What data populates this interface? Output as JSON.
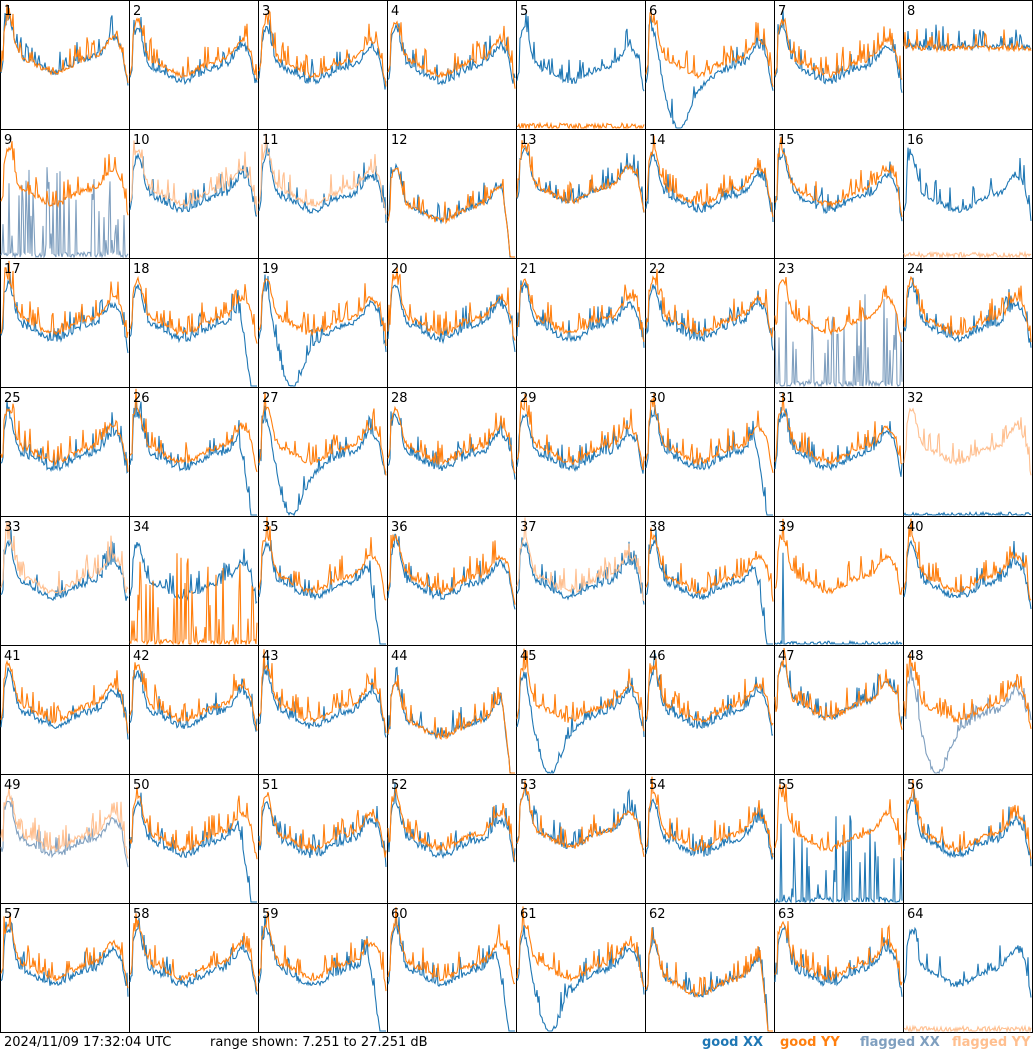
{
  "timestamp": "2024/11/09 17:32:04 UTC",
  "range_text": "range shown: 7.251 to 27.251 dB",
  "colors": {
    "good_xx": "#1f77b4",
    "good_yy": "#ff7f0e",
    "flagged_xx": "#7f9fbf",
    "flagged_yy": "#ffbf8f"
  },
  "legend": [
    {
      "label": "good XX",
      "color": "#1f77b4"
    },
    {
      "label": "good YY",
      "color": "#ff7f0e"
    },
    {
      "label": "flagged XX",
      "color": "#7f9fbf"
    },
    {
      "label": "flagged YY",
      "color": "#ffbf8f"
    }
  ],
  "chart_data": {
    "type": "line",
    "grid": "8x8 small multiples",
    "ylim": [
      7.251,
      27.251
    ],
    "panels": [
      {
        "label": "1",
        "xx": "good",
        "yy": "good",
        "shape": "drop"
      },
      {
        "label": "2",
        "xx": "good",
        "yy": "good",
        "shape": "normal"
      },
      {
        "label": "3",
        "xx": "good",
        "yy": "good",
        "shape": "normal"
      },
      {
        "label": "4",
        "xx": "good",
        "yy": "good",
        "shape": "normal"
      },
      {
        "label": "5",
        "xx": "good",
        "yy": "good",
        "shape": "yy-low"
      },
      {
        "label": "6",
        "xx": "good",
        "yy": "good",
        "shape": "xx-dip"
      },
      {
        "label": "7",
        "xx": "good",
        "yy": "good",
        "shape": "normal"
      },
      {
        "label": "8",
        "xx": "good",
        "yy": "good",
        "shape": "flat"
      },
      {
        "label": "9",
        "xx": "flagged",
        "yy": "good",
        "shape": "xx-spiky-low"
      },
      {
        "label": "10",
        "xx": "good",
        "yy": "flagged",
        "shape": "normal"
      },
      {
        "label": "11",
        "xx": "good",
        "yy": "flagged",
        "shape": "normal"
      },
      {
        "label": "12",
        "xx": "good",
        "yy": "good",
        "shape": "drop"
      },
      {
        "label": "13",
        "xx": "good",
        "yy": "good",
        "shape": "drop"
      },
      {
        "label": "14",
        "xx": "good",
        "yy": "good",
        "shape": "normal"
      },
      {
        "label": "15",
        "xx": "good",
        "yy": "good",
        "shape": "normal"
      },
      {
        "label": "16",
        "xx": "good",
        "yy": "flagged",
        "shape": "yy-low"
      },
      {
        "label": "17",
        "xx": "good",
        "yy": "good",
        "shape": "normal"
      },
      {
        "label": "18",
        "xx": "good",
        "yy": "good",
        "shape": "xx-drop"
      },
      {
        "label": "19",
        "xx": "good",
        "yy": "good",
        "shape": "xx-dip"
      },
      {
        "label": "20",
        "xx": "good",
        "yy": "good",
        "shape": "normal"
      },
      {
        "label": "21",
        "xx": "good",
        "yy": "good",
        "shape": "normal"
      },
      {
        "label": "22",
        "xx": "good",
        "yy": "good",
        "shape": "normal"
      },
      {
        "label": "23",
        "xx": "flagged",
        "yy": "good",
        "shape": "xx-spiky-low"
      },
      {
        "label": "24",
        "xx": "good",
        "yy": "good",
        "shape": "normal"
      },
      {
        "label": "25",
        "xx": "good",
        "yy": "good",
        "shape": "normal"
      },
      {
        "label": "26",
        "xx": "good",
        "yy": "good",
        "shape": "xx-drop"
      },
      {
        "label": "27",
        "xx": "good",
        "yy": "good",
        "shape": "xx-dip"
      },
      {
        "label": "28",
        "xx": "good",
        "yy": "good",
        "shape": "normal"
      },
      {
        "label": "29",
        "xx": "good",
        "yy": "good",
        "shape": "normal"
      },
      {
        "label": "30",
        "xx": "good",
        "yy": "good",
        "shape": "xx-drop"
      },
      {
        "label": "31",
        "xx": "good",
        "yy": "good",
        "shape": "normal"
      },
      {
        "label": "32",
        "xx": "good",
        "yy": "flagged",
        "shape": "yy-only"
      },
      {
        "label": "33",
        "xx": "good",
        "yy": "flagged",
        "shape": "normal"
      },
      {
        "label": "34",
        "xx": "good",
        "yy": "good",
        "shape": "yy-spiky-low"
      },
      {
        "label": "35",
        "xx": "good",
        "yy": "good",
        "shape": "xx-drop"
      },
      {
        "label": "36",
        "xx": "good",
        "yy": "good",
        "shape": "normal"
      },
      {
        "label": "37",
        "xx": "good",
        "yy": "flagged",
        "shape": "normal"
      },
      {
        "label": "38",
        "xx": "good",
        "yy": "good",
        "shape": "xx-drop"
      },
      {
        "label": "39",
        "xx": "good",
        "yy": "good",
        "shape": "xx-spike"
      },
      {
        "label": "40",
        "xx": "good",
        "yy": "good",
        "shape": "normal"
      },
      {
        "label": "41",
        "xx": "good",
        "yy": "good",
        "shape": "normal"
      },
      {
        "label": "42",
        "xx": "good",
        "yy": "good",
        "shape": "normal"
      },
      {
        "label": "43",
        "xx": "good",
        "yy": "good",
        "shape": "normal"
      },
      {
        "label": "44",
        "xx": "good",
        "yy": "good",
        "shape": "drop"
      },
      {
        "label": "45",
        "xx": "good",
        "yy": "good",
        "shape": "xx-dip"
      },
      {
        "label": "46",
        "xx": "good",
        "yy": "good",
        "shape": "normal"
      },
      {
        "label": "47",
        "xx": "good",
        "yy": "good",
        "shape": "drop"
      },
      {
        "label": "48",
        "xx": "flagged",
        "yy": "good",
        "shape": "xx-dip"
      },
      {
        "label": "49",
        "xx": "flagged",
        "yy": "flagged",
        "shape": "normal"
      },
      {
        "label": "50",
        "xx": "good",
        "yy": "good",
        "shape": "xx-drop"
      },
      {
        "label": "51",
        "xx": "good",
        "yy": "good",
        "shape": "normal"
      },
      {
        "label": "52",
        "xx": "good",
        "yy": "good",
        "shape": "normal"
      },
      {
        "label": "53",
        "xx": "good",
        "yy": "good",
        "shape": "drop"
      },
      {
        "label": "54",
        "xx": "good",
        "yy": "good",
        "shape": "normal"
      },
      {
        "label": "55",
        "xx": "good",
        "yy": "good",
        "shape": "xx-spiky-low"
      },
      {
        "label": "56",
        "xx": "good",
        "yy": "good",
        "shape": "normal"
      },
      {
        "label": "57",
        "xx": "good",
        "yy": "good",
        "shape": "normal"
      },
      {
        "label": "58",
        "xx": "good",
        "yy": "good",
        "shape": "normal"
      },
      {
        "label": "59",
        "xx": "good",
        "yy": "good",
        "shape": "xx-drop"
      },
      {
        "label": "60",
        "xx": "good",
        "yy": "good",
        "shape": "xx-drop"
      },
      {
        "label": "61",
        "xx": "good",
        "yy": "good",
        "shape": "xx-dip"
      },
      {
        "label": "62",
        "xx": "good",
        "yy": "good",
        "shape": "drop"
      },
      {
        "label": "63",
        "xx": "good",
        "yy": "good",
        "shape": "normal"
      },
      {
        "label": "64",
        "xx": "good",
        "yy": "flagged",
        "shape": "yy-low"
      }
    ]
  }
}
